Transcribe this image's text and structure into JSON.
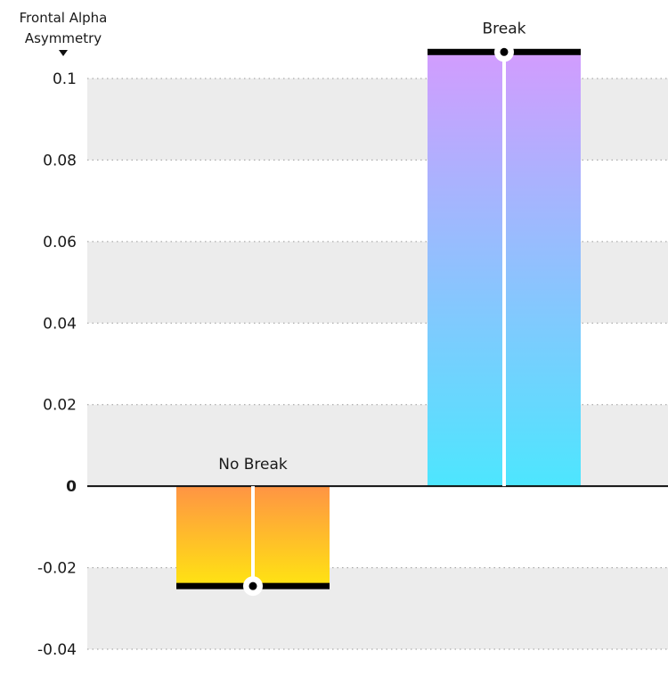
{
  "chart_data": {
    "type": "bar",
    "title": "",
    "ylabel_lines": [
      "Frontal Alpha",
      "Asymmetry"
    ],
    "xlabel": "",
    "ylim": [
      -0.04,
      0.1
    ],
    "yticks": [
      0.1,
      0.08,
      0.06,
      0.04,
      0.02,
      0,
      -0.02,
      -0.04
    ],
    "ytick_labels": [
      "0.1",
      "0.08",
      "0.06",
      "0.04",
      "0.02",
      "0",
      "-0.02",
      "-0.04"
    ],
    "grid": true,
    "categories": [
      "No Break",
      "Break"
    ],
    "values": [
      -0.0245,
      0.1065
    ],
    "gradients": [
      [
        "#ff9444",
        "#ffe412"
      ],
      [
        "#d29cfe",
        "#4de6fe"
      ]
    ]
  }
}
